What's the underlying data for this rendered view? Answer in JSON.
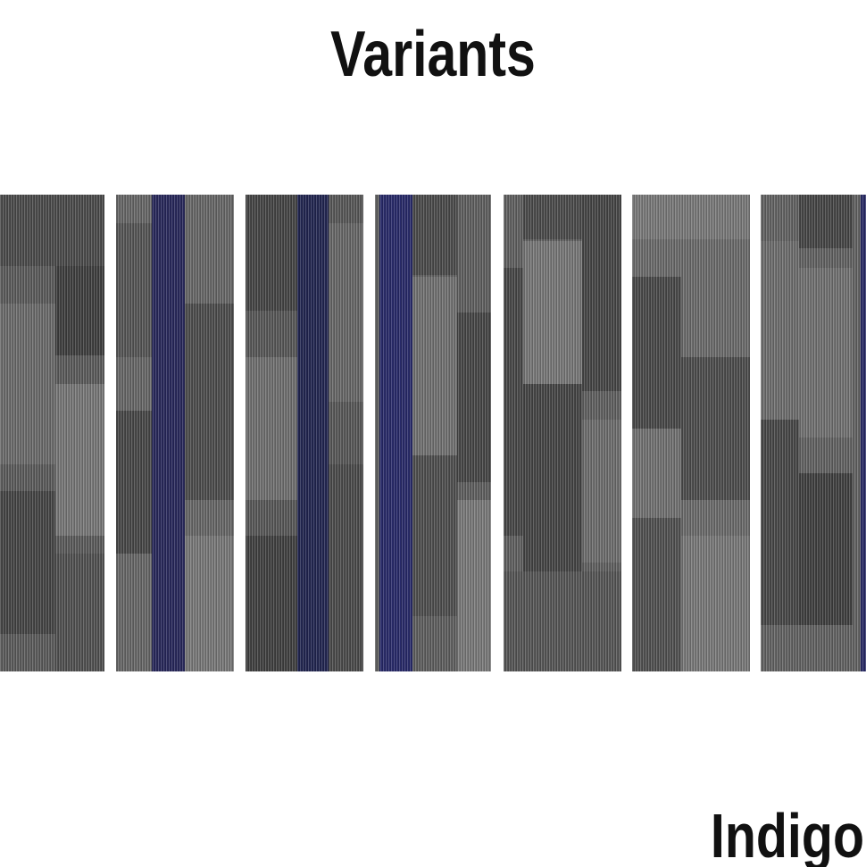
{
  "header": {
    "title": "Variants"
  },
  "footer": {
    "label": "Indigo"
  }
}
